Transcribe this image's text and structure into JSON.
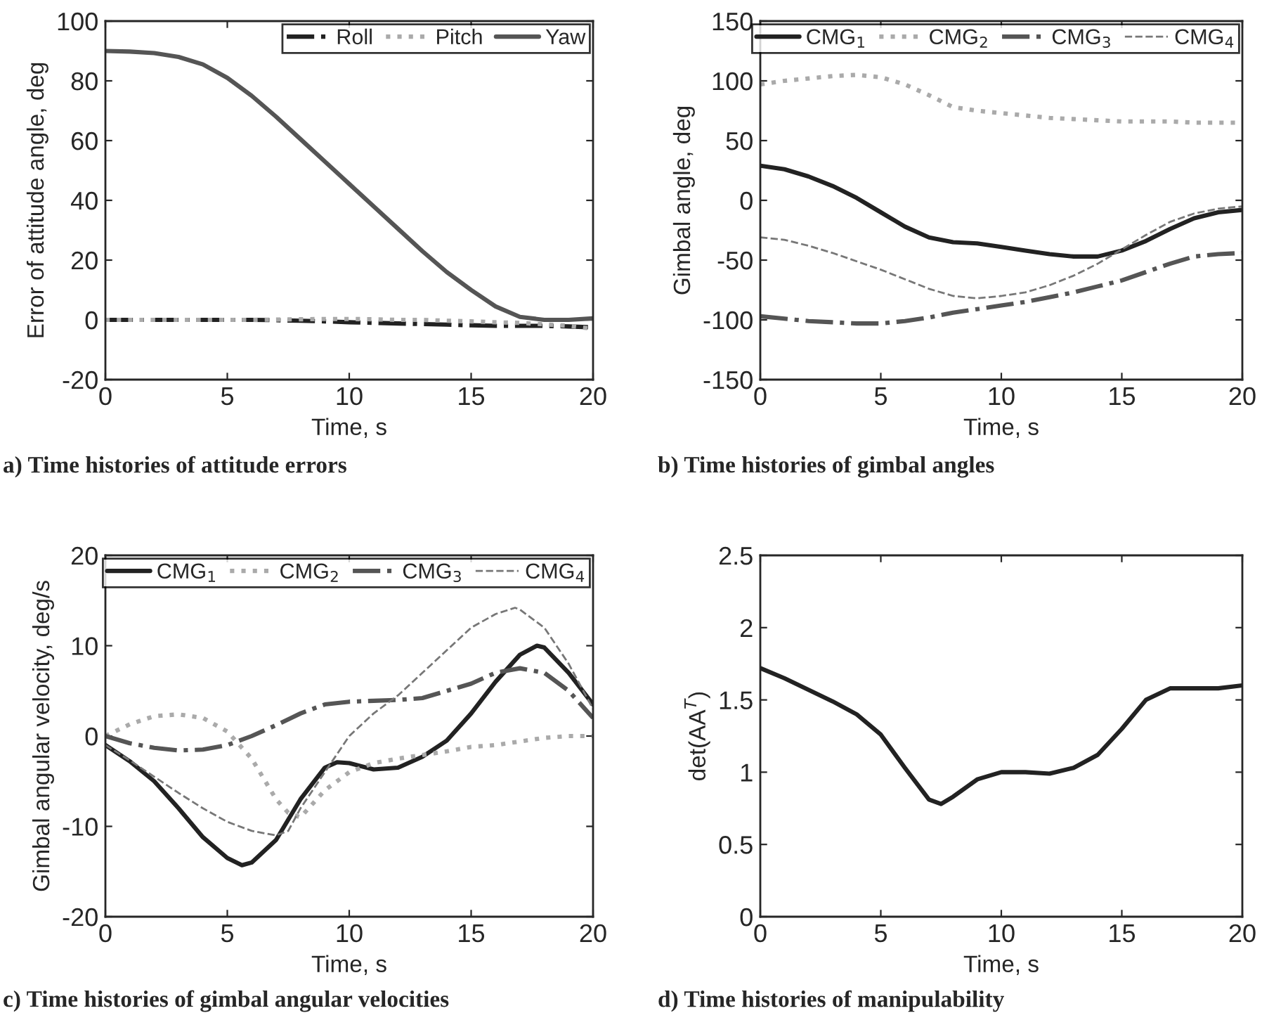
{
  "chart_data": [
    {
      "type": "line",
      "xlabel": "Time, s",
      "ylabel": "Error of attitude angle, deg",
      "annotations": [
        "a) Time histories of attitude errors"
      ],
      "xlim": [
        0,
        20
      ],
      "xticks": [
        0,
        5,
        10,
        15,
        20
      ],
      "ylim": [
        -20,
        100
      ],
      "yticks": [
        -20,
        0,
        20,
        40,
        60,
        80,
        100
      ],
      "legend": "top right",
      "grid": false,
      "x": [
        0,
        1,
        2,
        3,
        4,
        5,
        6,
        7,
        8,
        9,
        10,
        11,
        12,
        13,
        14,
        15,
        16,
        17,
        18,
        19,
        20
      ],
      "series": [
        {
          "name": "Roll",
          "color": "#222222",
          "line_style": "dashdot",
          "values": [
            0,
            0,
            0,
            0,
            0,
            0,
            0,
            -0.1,
            -0.3,
            -0.5,
            -0.8,
            -1,
            -1.2,
            -1.4,
            -1.6,
            -1.8,
            -2,
            -2,
            -2,
            -2.2,
            -2.5
          ]
        },
        {
          "name": "Pitch",
          "color": "#aaaaaa",
          "line_style": "dotted",
          "values": [
            0,
            0,
            0,
            0,
            0,
            0,
            0,
            0.1,
            0.2,
            0.3,
            0.3,
            0.2,
            0,
            0,
            -0.3,
            -0.5,
            -0.8,
            -1,
            -1.5,
            -2,
            -3
          ]
        },
        {
          "name": "Yaw",
          "color": "#555555",
          "line_style": "solid",
          "values": [
            90,
            89.8,
            89.3,
            88,
            85.5,
            81,
            75,
            68,
            60.5,
            53,
            45.5,
            38,
            30.5,
            23,
            16,
            10,
            4.5,
            1,
            0,
            0,
            0.5
          ]
        }
      ]
    },
    {
      "type": "line",
      "xlabel": "Time, s",
      "ylabel": "Gimbal angle, deg",
      "annotations": [
        "b) Time histories of gimbal angles"
      ],
      "xlim": [
        0,
        20
      ],
      "xticks": [
        0,
        5,
        10,
        15,
        20
      ],
      "ylim": [
        -150,
        150
      ],
      "yticks": [
        -150,
        -100,
        -50,
        0,
        50,
        100,
        150
      ],
      "legend": "top right",
      "grid": false,
      "x": [
        0,
        1,
        2,
        3,
        4,
        5,
        6,
        7,
        8,
        9,
        10,
        11,
        12,
        13,
        14,
        15,
        16,
        17,
        18,
        19,
        20
      ],
      "series": [
        {
          "name": "CMG$_{1}$",
          "color": "#222222",
          "line_style": "solid",
          "values": [
            29,
            26,
            20,
            12,
            2,
            -10,
            -22,
            -31,
            -35,
            -36,
            -39,
            -42,
            -45,
            -47,
            -47,
            -42,
            -34,
            -24,
            -15,
            -10,
            -8
          ]
        },
        {
          "name": "CMG$_{2}$",
          "color": "#aaaaaa",
          "line_style": "dotted",
          "values": [
            97,
            100,
            102,
            104,
            105,
            103,
            97,
            88,
            78,
            75,
            73,
            71,
            69,
            68,
            67,
            66,
            66,
            66,
            65,
            65,
            65
          ]
        },
        {
          "name": "CMG$_{3}$",
          "color": "#555555",
          "line_style": "dashdot",
          "values": [
            -97,
            -99,
            -101,
            -102,
            -103,
            -103,
            -101,
            -98,
            -94,
            -91,
            -88,
            -85,
            -81,
            -77,
            -72,
            -67,
            -60,
            -53,
            -47,
            -45,
            -44
          ]
        },
        {
          "name": "CMG$_{4}$",
          "color": "#777777",
          "line_style": "dashed",
          "values": [
            -31,
            -33,
            -38,
            -44,
            -51,
            -58,
            -66,
            -74,
            -80,
            -82,
            -80,
            -77,
            -71,
            -63,
            -53,
            -41,
            -29,
            -18,
            -11,
            -7,
            -5
          ]
        }
      ]
    },
    {
      "type": "line",
      "xlabel": "Time, s",
      "ylabel": "Gimbal angular velocity, deg/s",
      "annotations": [
        "c) Time histories of gimbal angular velocities"
      ],
      "xlim": [
        0,
        20
      ],
      "xticks": [
        0,
        5,
        10,
        15,
        20
      ],
      "ylim": [
        -20,
        20
      ],
      "yticks": [
        -20,
        -10,
        0,
        10,
        20
      ],
      "legend": "top right",
      "grid": false,
      "series": [
        {
          "name": "CMG$_{1}$",
          "color": "#222222",
          "line_style": "solid",
          "x": [
            0,
            1,
            2,
            3,
            4,
            5,
            5.6,
            6,
            7,
            8,
            9,
            9.5,
            10,
            11,
            12,
            13,
            14,
            15,
            16,
            17,
            17.7,
            18,
            19,
            20
          ],
          "values": [
            -1,
            -2.8,
            -5,
            -8,
            -11.2,
            -13.5,
            -14.3,
            -14,
            -11.5,
            -7,
            -3.5,
            -2.9,
            -3,
            -3.7,
            -3.5,
            -2.3,
            -0.5,
            2.5,
            6,
            9,
            10,
            9.8,
            7,
            3.5
          ]
        },
        {
          "name": "CMG$_{2}$",
          "color": "#aaaaaa",
          "line_style": "dotted",
          "x": [
            0,
            1,
            2,
            3,
            4,
            5,
            6,
            7,
            7.5,
            8,
            9,
            10,
            11,
            12,
            13,
            14,
            15,
            16,
            17,
            18,
            19,
            20
          ],
          "values": [
            0,
            1.3,
            2.2,
            2.4,
            2,
            0.5,
            -2.5,
            -7,
            -8.5,
            -9,
            -6,
            -4,
            -3,
            -2.5,
            -2.1,
            -1.7,
            -1.2,
            -1,
            -0.6,
            -0.2,
            0,
            0
          ]
        },
        {
          "name": "CMG$_{3}$",
          "color": "#555555",
          "line_style": "dashdot",
          "x": [
            0,
            1,
            2,
            3,
            4,
            5,
            6,
            7,
            8,
            9,
            10,
            11,
            12,
            13,
            14,
            15,
            16,
            17,
            18,
            19,
            20
          ],
          "values": [
            0,
            -0.8,
            -1.3,
            -1.6,
            -1.5,
            -1,
            0,
            1.2,
            2.5,
            3.5,
            3.8,
            3.9,
            4,
            4.2,
            5,
            5.8,
            7,
            7.5,
            7,
            5,
            2
          ]
        },
        {
          "name": "CMG$_{4}$",
          "color": "#777777",
          "line_style": "dashed",
          "x": [
            0,
            1,
            2,
            3,
            4,
            5,
            6,
            7,
            7.5,
            8,
            9,
            10,
            11,
            12,
            13,
            14,
            15,
            16,
            16.8,
            17,
            18,
            19,
            20
          ],
          "values": [
            -1,
            -2.7,
            -4.5,
            -6.3,
            -8,
            -9.5,
            -10.5,
            -11,
            -10.5,
            -8,
            -4,
            0,
            2.5,
            4.5,
            7,
            9.5,
            12,
            13.5,
            14.2,
            14,
            12,
            8,
            3
          ]
        }
      ]
    },
    {
      "type": "line",
      "xlabel": "Time, s",
      "ylabel": "det(AA$^{T}$)",
      "annotations": [
        "d) Time histories of manipulability"
      ],
      "xlim": [
        0,
        20
      ],
      "xticks": [
        0,
        5,
        10,
        15,
        20
      ],
      "ylim": [
        0,
        2.5
      ],
      "yticks": [
        0,
        0.5,
        1,
        1.5,
        2,
        2.5
      ],
      "grid": false,
      "series": [
        {
          "color": "#222222",
          "line_style": "solid",
          "x": [
            0,
            1,
            2,
            3,
            4,
            5,
            6,
            7,
            7.5,
            8,
            9,
            10,
            11,
            12,
            13,
            14,
            15,
            16,
            17,
            18,
            19,
            20
          ],
          "values": [
            1.72,
            1.65,
            1.57,
            1.49,
            1.4,
            1.26,
            1.03,
            0.81,
            0.78,
            0.83,
            0.95,
            1.0,
            1.0,
            0.99,
            1.03,
            1.12,
            1.3,
            1.5,
            1.58,
            1.58,
            1.58,
            1.6
          ]
        }
      ]
    }
  ]
}
